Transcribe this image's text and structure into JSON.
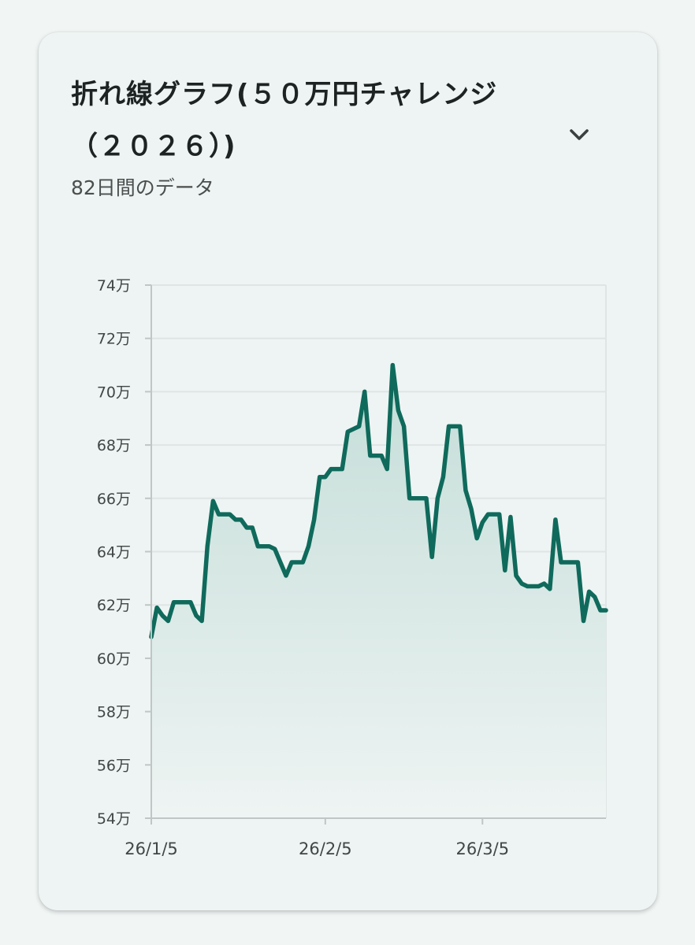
{
  "header": {
    "title": "折れ線グラフ(５０万円チャレンジ（２０２６）)",
    "subtitle": "82日間のデータ",
    "expand_icon": "chevron-down-icon"
  },
  "colors": {
    "line": "#0f6a5c",
    "fill_top": "#c4ddd8",
    "fill_bottom": "#eef4f3",
    "grid": "#dfe5e4",
    "axis": "#bfc6c5"
  },
  "chart_data": {
    "type": "area",
    "title": "",
    "xlabel": "",
    "ylabel": "",
    "ylim": [
      540000,
      740000
    ],
    "y_ticks": [
      {
        "value": 740000,
        "label": "74万"
      },
      {
        "value": 720000,
        "label": "72万"
      },
      {
        "value": 700000,
        "label": "70万"
      },
      {
        "value": 680000,
        "label": "68万"
      },
      {
        "value": 660000,
        "label": "66万"
      },
      {
        "value": 640000,
        "label": "64万"
      },
      {
        "value": 620000,
        "label": "62万"
      },
      {
        "value": 600000,
        "label": "60万"
      },
      {
        "value": 580000,
        "label": "58万"
      },
      {
        "value": 560000,
        "label": "56万"
      },
      {
        "value": 540000,
        "label": "54万"
      }
    ],
    "x_ticks": [
      {
        "date": "2026-01-05",
        "label": "26/1/5"
      },
      {
        "date": "2026-02-05",
        "label": "26/2/5"
      },
      {
        "date": "2026-03-05",
        "label": "26/3/5"
      }
    ],
    "grid": true,
    "legend": "none",
    "x_range": [
      "2026-01-05",
      "2026-03-27"
    ],
    "series": [
      {
        "name": "",
        "points": [
          [
            "2026-01-05",
            608000
          ],
          [
            "2026-01-06",
            619000
          ],
          [
            "2026-01-07",
            616000
          ],
          [
            "2026-01-08",
            614000
          ],
          [
            "2026-01-09",
            621000
          ],
          [
            "2026-01-10",
            621000
          ],
          [
            "2026-01-11",
            621000
          ],
          [
            "2026-01-12",
            621000
          ],
          [
            "2026-01-13",
            616000
          ],
          [
            "2026-01-14",
            614000
          ],
          [
            "2026-01-15",
            642000
          ],
          [
            "2026-01-16",
            659000
          ],
          [
            "2026-01-17",
            654000
          ],
          [
            "2026-01-18",
            654000
          ],
          [
            "2026-01-19",
            654000
          ],
          [
            "2026-01-20",
            652000
          ],
          [
            "2026-01-21",
            652000
          ],
          [
            "2026-01-22",
            649000
          ],
          [
            "2026-01-23",
            649000
          ],
          [
            "2026-01-24",
            642000
          ],
          [
            "2026-01-25",
            642000
          ],
          [
            "2026-01-26",
            642000
          ],
          [
            "2026-01-27",
            641000
          ],
          [
            "2026-01-28",
            636000
          ],
          [
            "2026-01-29",
            631000
          ],
          [
            "2026-01-30",
            636000
          ],
          [
            "2026-01-31",
            636000
          ],
          [
            "2026-02-01",
            636000
          ],
          [
            "2026-02-02",
            642000
          ],
          [
            "2026-02-03",
            652000
          ],
          [
            "2026-02-04",
            668000
          ],
          [
            "2026-02-05",
            668000
          ],
          [
            "2026-02-06",
            671000
          ],
          [
            "2026-02-07",
            671000
          ],
          [
            "2026-02-08",
            671000
          ],
          [
            "2026-02-09",
            685000
          ],
          [
            "2026-02-10",
            686000
          ],
          [
            "2026-02-11",
            687000
          ],
          [
            "2026-02-12",
            700000
          ],
          [
            "2026-02-13",
            676000
          ],
          [
            "2026-02-14",
            676000
          ],
          [
            "2026-02-15",
            676000
          ],
          [
            "2026-02-16",
            671000
          ],
          [
            "2026-02-17",
            710000
          ],
          [
            "2026-02-18",
            693000
          ],
          [
            "2026-02-19",
            687000
          ],
          [
            "2026-02-20",
            660000
          ],
          [
            "2026-02-21",
            660000
          ],
          [
            "2026-02-22",
            660000
          ],
          [
            "2026-02-23",
            660000
          ],
          [
            "2026-02-24",
            638000
          ],
          [
            "2026-02-25",
            660000
          ],
          [
            "2026-02-26",
            668000
          ],
          [
            "2026-02-27",
            687000
          ],
          [
            "2026-02-28",
            687000
          ],
          [
            "2026-03-01",
            687000
          ],
          [
            "2026-03-02",
            663000
          ],
          [
            "2026-03-03",
            656000
          ],
          [
            "2026-03-04",
            645000
          ],
          [
            "2026-03-05",
            651000
          ],
          [
            "2026-03-06",
            654000
          ],
          [
            "2026-03-07",
            654000
          ],
          [
            "2026-03-08",
            654000
          ],
          [
            "2026-03-09",
            633000
          ],
          [
            "2026-03-10",
            653000
          ],
          [
            "2026-03-11",
            631000
          ],
          [
            "2026-03-12",
            628000
          ],
          [
            "2026-03-13",
            627000
          ],
          [
            "2026-03-14",
            627000
          ],
          [
            "2026-03-15",
            627000
          ],
          [
            "2026-03-16",
            628000
          ],
          [
            "2026-03-17",
            626000
          ],
          [
            "2026-03-18",
            652000
          ],
          [
            "2026-03-19",
            636000
          ],
          [
            "2026-03-20",
            636000
          ],
          [
            "2026-03-21",
            636000
          ],
          [
            "2026-03-22",
            636000
          ],
          [
            "2026-03-23",
            614000
          ],
          [
            "2026-03-24",
            625000
          ],
          [
            "2026-03-25",
            623000
          ],
          [
            "2026-03-26",
            618000
          ],
          [
            "2026-03-27",
            618000
          ]
        ]
      }
    ]
  }
}
